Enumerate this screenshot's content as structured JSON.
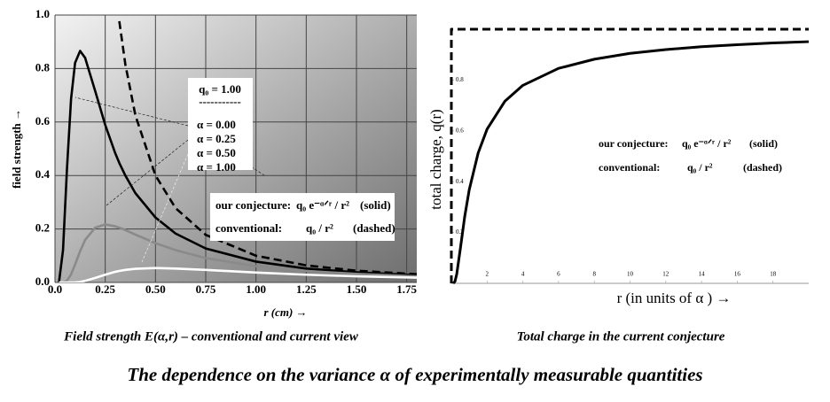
{
  "chart_data": [
    {
      "type": "line",
      "y_label": "field strength →",
      "x_label": "r (cm)  →",
      "caption": "Field strength E(α,r) – conventional and current view",
      "xlim": [
        0,
        1.8
      ],
      "ylim": [
        0,
        1
      ],
      "xticks": [
        {
          "value": 0,
          "label": "0.0"
        },
        0.25,
        {
          "value": 0.5,
          "label": "0.50"
        },
        {
          "value": 0.75,
          "label": "0.75"
        },
        {
          "value": 1,
          "label": "1.00"
        },
        1.25,
        {
          "value": 1.5,
          "label": "1.50"
        },
        1.75
      ],
      "yticks": [
        {
          "value": 0,
          "label": "0.0"
        },
        0.2,
        0.4,
        0.6,
        0.8,
        {
          "value": 1,
          "label": "1.0"
        }
      ],
      "grid": true,
      "legend_title": "q₀ = 1.00",
      "legend_separator": "-----------",
      "x": [
        0.02,
        0.04,
        0.06,
        0.08,
        0.1,
        0.125,
        0.15,
        0.2,
        0.25,
        0.3,
        0.32,
        0.35,
        0.4,
        0.5,
        0.6,
        0.75,
        1.0,
        1.25,
        1.5,
        1.8
      ],
      "series": [
        {
          "name": "α = 0.00",
          "color": "#000000",
          "dashed": true,
          "values": [
            null,
            null,
            null,
            null,
            null,
            null,
            null,
            null,
            null,
            null,
            0.977,
            0.816,
            0.625,
            0.4,
            0.278,
            0.178,
            0.1,
            0.064,
            0.044,
            0.031
          ]
        },
        {
          "name": "α = 0.25",
          "color": "#000000",
          "dashed": false,
          "values": [
            0.001,
            0.121,
            0.43,
            0.686,
            0.821,
            0.866,
            0.84,
            0.716,
            0.589,
            0.483,
            0.447,
            0.4,
            0.334,
            0.243,
            0.183,
            0.127,
            0.078,
            0.052,
            0.038,
            0.027
          ]
        },
        {
          "name": "α = 0.50",
          "color": "#8a8a8a",
          "dashed": false,
          "values": [
            0,
            0,
            0.007,
            0.03,
            0.067,
            0.117,
            0.159,
            0.205,
            0.217,
            0.21,
            0.205,
            0.196,
            0.179,
            0.147,
            0.121,
            0.091,
            0.061,
            0.043,
            0.032,
            0.023
          ]
        },
        {
          "name": "α = 1.00",
          "color": "#ffffff",
          "dashed": false,
          "values": [
            0,
            0,
            0,
            0,
            0,
            0.002,
            0.006,
            0.017,
            0.029,
            0.04,
            0.043,
            0.047,
            0.051,
            0.054,
            0.052,
            0.047,
            0.037,
            0.029,
            0.023,
            0.018
          ]
        }
      ],
      "annotations": {
        "conjecture": {
          "label": "our conjecture:",
          "formula": "q₀ e⁻ᵅᐟʳ / r²",
          "style": "(solid)"
        },
        "conventional": {
          "label": "conventional:",
          "formula": "q₀ / r²",
          "style": "(dashed)"
        }
      }
    },
    {
      "type": "line",
      "y_label": "total charge, q(r)",
      "x_label": "r (in units of α ) →",
      "caption": "Total charge in the current conjecture",
      "xlim": [
        0,
        20
      ],
      "ylim": [
        0,
        1
      ],
      "xticks": [
        2,
        4,
        6,
        8,
        10,
        12,
        14,
        16,
        18
      ],
      "yticks": [
        0.2,
        0.4,
        0.6,
        0.8
      ],
      "grid": false,
      "series": [
        {
          "color": "#000000",
          "dashed": false,
          "x": [
            0.1,
            0.2,
            0.3,
            0.5,
            0.75,
            1,
            1.5,
            2,
            3,
            4,
            6,
            8,
            10,
            12,
            14,
            16,
            18,
            20
          ],
          "values": [
            0,
            0.007,
            0.036,
            0.135,
            0.264,
            0.368,
            0.513,
            0.607,
            0.717,
            0.779,
            0.846,
            0.882,
            0.905,
            0.92,
            0.931,
            0.939,
            0.946,
            0.951
          ]
        },
        {
          "color": "#000000",
          "dashed": true,
          "x": [
            0,
            0,
            20
          ],
          "values": [
            0,
            1,
            1
          ]
        }
      ],
      "annotations": {
        "conjecture": {
          "label": "our conjecture:",
          "formula": "q₀ e⁻ᵅᐟʳ / r²",
          "style": "(solid)"
        },
        "conventional": {
          "label": "conventional:",
          "formula": "q₀ / r²",
          "style": "(dashed)"
        }
      }
    }
  ],
  "figure_caption": "The dependence on the variance α of experimentally measurable quantities"
}
